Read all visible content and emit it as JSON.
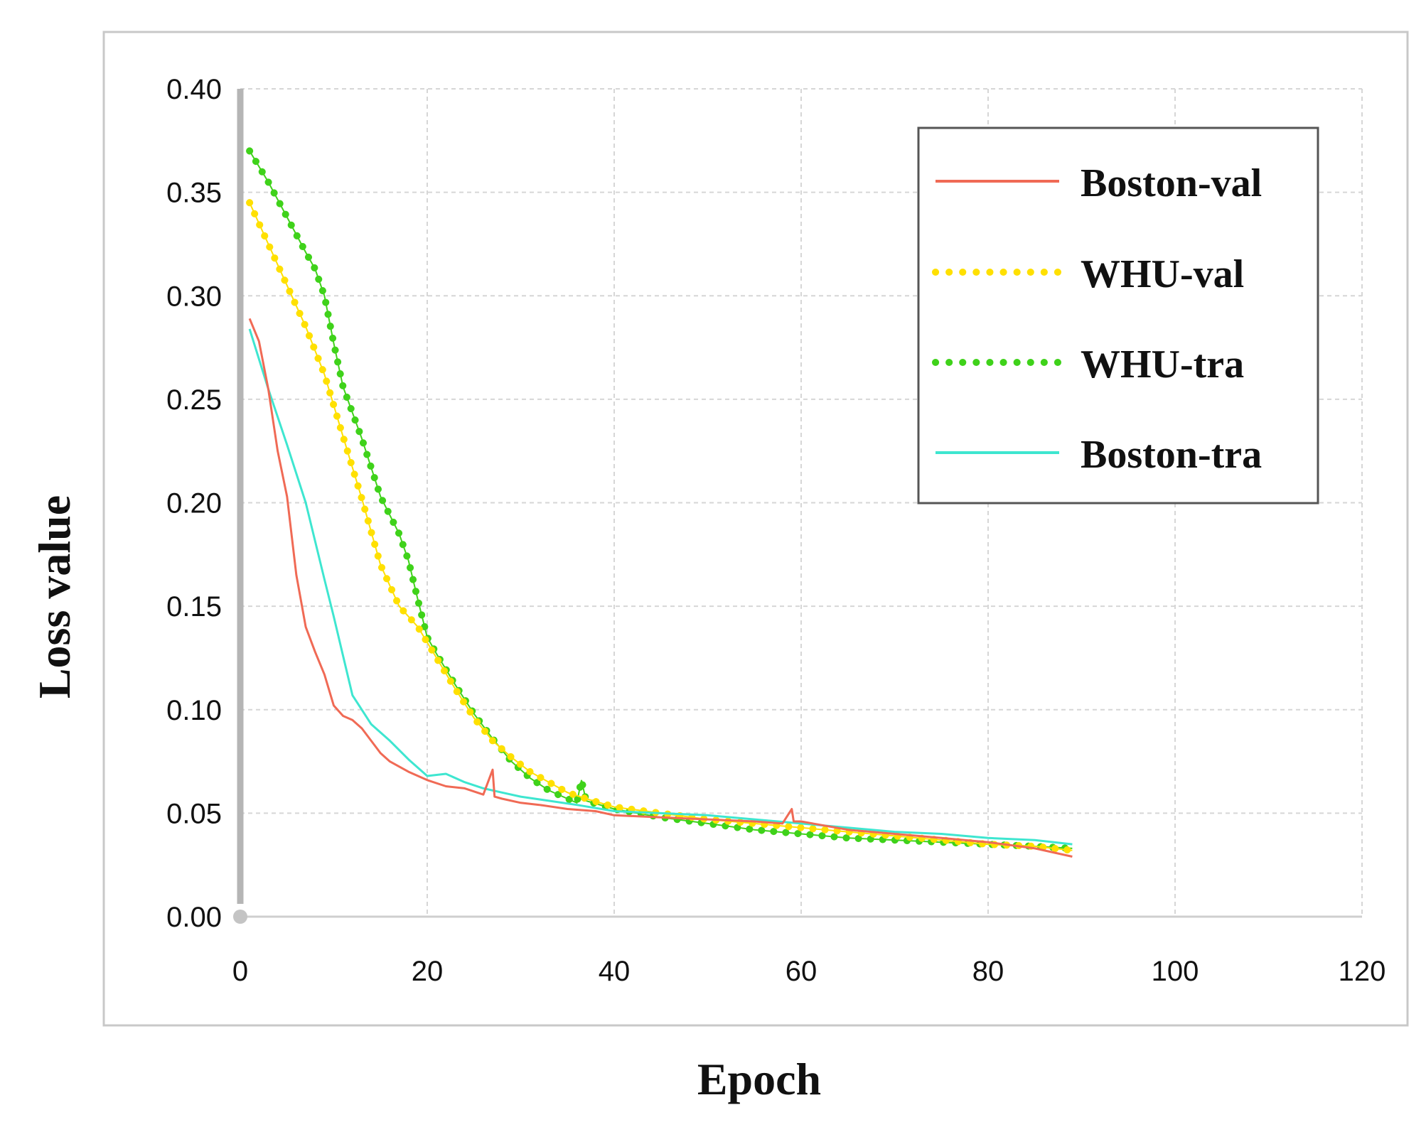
{
  "chart_data": {
    "type": "line",
    "xlabel": "Epoch",
    "ylabel": "Loss value",
    "xlim": [
      0,
      120
    ],
    "ylim": [
      0,
      0.4
    ],
    "xticks": [
      "0",
      "20",
      "40",
      "60",
      "80",
      "100",
      "120"
    ],
    "yticks": [
      "0.00",
      "0.05",
      "0.10",
      "0.15",
      "0.20",
      "0.25",
      "0.30",
      "0.35",
      "0.40"
    ],
    "grid": true,
    "legend_position": "top-right",
    "series": [
      {
        "name": "Boston-val",
        "color": "#f06a55",
        "style": "solid",
        "x": [
          1,
          2,
          3,
          4,
          5,
          6,
          7,
          8,
          9,
          10,
          11,
          12,
          13,
          14,
          15,
          16,
          18,
          20,
          22,
          24,
          26,
          27,
          27.2,
          28,
          30,
          32,
          35,
          38,
          40,
          45,
          50,
          55,
          58,
          59,
          59.2,
          60,
          65,
          70,
          75,
          80,
          85,
          89
        ],
        "y": [
          0.289,
          0.278,
          0.255,
          0.225,
          0.203,
          0.165,
          0.14,
          0.128,
          0.117,
          0.102,
          0.097,
          0.095,
          0.091,
          0.085,
          0.079,
          0.075,
          0.07,
          0.066,
          0.063,
          0.062,
          0.059,
          0.071,
          0.058,
          0.057,
          0.055,
          0.054,
          0.052,
          0.051,
          0.049,
          0.048,
          0.047,
          0.046,
          0.045,
          0.052,
          0.046,
          0.046,
          0.042,
          0.04,
          0.038,
          0.036,
          0.033,
          0.029
        ]
      },
      {
        "name": "WHU-val",
        "color": "#ffe000",
        "style": "dotted",
        "x": [
          1,
          3,
          5,
          7,
          9,
          11,
          13,
          15,
          17,
          19,
          21,
          23,
          25,
          27,
          29,
          31,
          33,
          35,
          37,
          40,
          45,
          50,
          55,
          60,
          65,
          70,
          75,
          80,
          85,
          89
        ],
        "y": [
          0.345,
          0.325,
          0.305,
          0.285,
          0.262,
          0.232,
          0.202,
          0.17,
          0.15,
          0.14,
          0.125,
          0.11,
          0.096,
          0.085,
          0.077,
          0.07,
          0.065,
          0.06,
          0.057,
          0.053,
          0.05,
          0.047,
          0.045,
          0.043,
          0.041,
          0.039,
          0.037,
          0.035,
          0.034,
          0.032
        ]
      },
      {
        "name": "WHU-tra",
        "color": "#3fd21a",
        "style": "dotted",
        "x": [
          1,
          3,
          5,
          7,
          8,
          9,
          10,
          11,
          13,
          15,
          17,
          18,
          19,
          20,
          21,
          23,
          25,
          27,
          29,
          31,
          33,
          35,
          36,
          36.5,
          37,
          40,
          45,
          50,
          55,
          60,
          65,
          70,
          75,
          80,
          85,
          89
        ],
        "y": [
          0.37,
          0.355,
          0.338,
          0.321,
          0.313,
          0.3,
          0.277,
          0.256,
          0.231,
          0.203,
          0.185,
          0.172,
          0.153,
          0.135,
          0.127,
          0.112,
          0.098,
          0.086,
          0.075,
          0.067,
          0.061,
          0.057,
          0.055,
          0.066,
          0.056,
          0.052,
          0.048,
          0.045,
          0.042,
          0.04,
          0.038,
          0.037,
          0.036,
          0.035,
          0.034,
          0.033
        ]
      },
      {
        "name": "Boston-tra",
        "color": "#3ee6d0",
        "style": "solid",
        "x": [
          1,
          3,
          5,
          7,
          9,
          10,
          11,
          12,
          13,
          14,
          16,
          18,
          20,
          22,
          24,
          26,
          28,
          30,
          33,
          36,
          40,
          45,
          50,
          55,
          60,
          65,
          70,
          75,
          80,
          85,
          89
        ],
        "y": [
          0.284,
          0.255,
          0.228,
          0.2,
          0.163,
          0.145,
          0.126,
          0.107,
          0.1,
          0.093,
          0.085,
          0.076,
          0.068,
          0.069,
          0.065,
          0.062,
          0.06,
          0.058,
          0.056,
          0.054,
          0.051,
          0.05,
          0.049,
          0.047,
          0.045,
          0.043,
          0.041,
          0.04,
          0.038,
          0.037,
          0.035
        ]
      }
    ]
  }
}
